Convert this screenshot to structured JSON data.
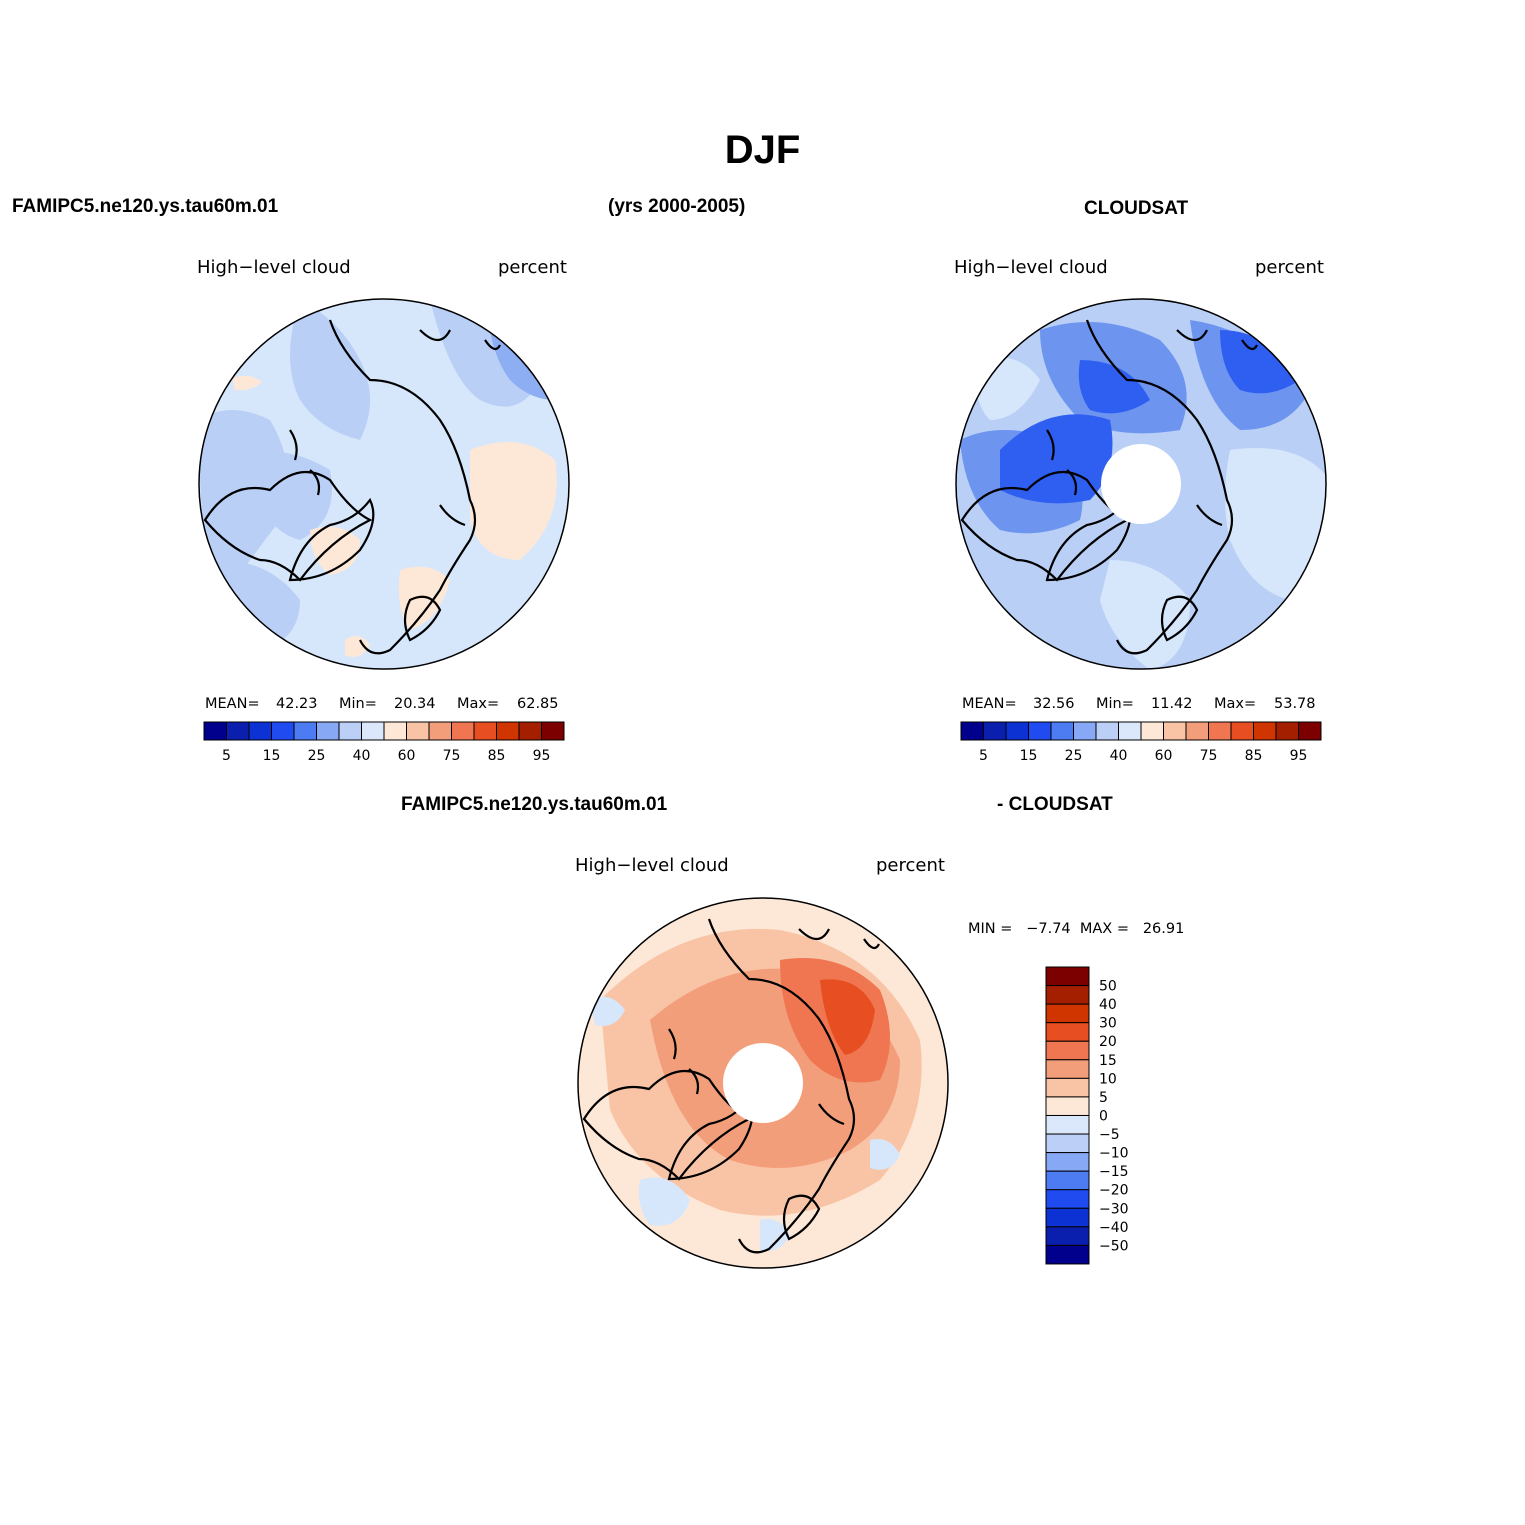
{
  "page": {
    "title": "DJF",
    "case_name": "FAMIPC5.ne120.ys.tau60m.01",
    "years": "(yrs 2000-2005)",
    "obs_name": "CLOUDSAT",
    "diff_case": "FAMIPC5.ne120.ys.tau60m.01",
    "diff_obs": "- CLOUDSAT"
  },
  "panels": {
    "model": {
      "variable": "High−level cloud",
      "units": "percent",
      "stats": {
        "mean_label": "MEAN=",
        "mean": "42.23",
        "min_label": "Min=",
        "min": "20.34",
        "max_label": "Max=",
        "max": "62.85"
      }
    },
    "obs": {
      "variable": "High−level cloud",
      "units": "percent",
      "stats": {
        "mean_label": "MEAN=",
        "mean": "32.56",
        "min_label": "Min=",
        "min": "11.42",
        "max_label": "Max=",
        "max": "53.78"
      }
    },
    "diff": {
      "variable": "High−level cloud",
      "units": "percent",
      "stats_text": "MIN =   −7.74  MAX =   26.91"
    }
  },
  "colorbars": {
    "field": {
      "colors": [
        "#00008c",
        "#0a1fae",
        "#0d32d4",
        "#1f4bf0",
        "#4d7cf2",
        "#87a8f5",
        "#bcd0f7",
        "#dbe8fb",
        "#fde8d8",
        "#f9c4a6",
        "#f39e7a",
        "#ef7650",
        "#e74f22",
        "#d03500",
        "#a41f00",
        "#7d0000"
      ],
      "tick_labels": [
        "5",
        "15",
        "25",
        "40",
        "60",
        "75",
        "85",
        "95"
      ]
    },
    "diff": {
      "colors": [
        "#00008c",
        "#0a1fae",
        "#0d32d4",
        "#1f4bf0",
        "#4d7cf2",
        "#87a8f5",
        "#bcd0f7",
        "#dbe8fb",
        "#fde8d8",
        "#f9c4a6",
        "#f39e7a",
        "#ef7650",
        "#e74f22",
        "#d03500",
        "#a41f00",
        "#7d0000"
      ],
      "tick_labels": [
        "50",
        "40",
        "30",
        "20",
        "15",
        "10",
        "5",
        "0",
        "−5",
        "−10",
        "−15",
        "−20",
        "−30",
        "−40",
        "−50"
      ]
    }
  }
}
